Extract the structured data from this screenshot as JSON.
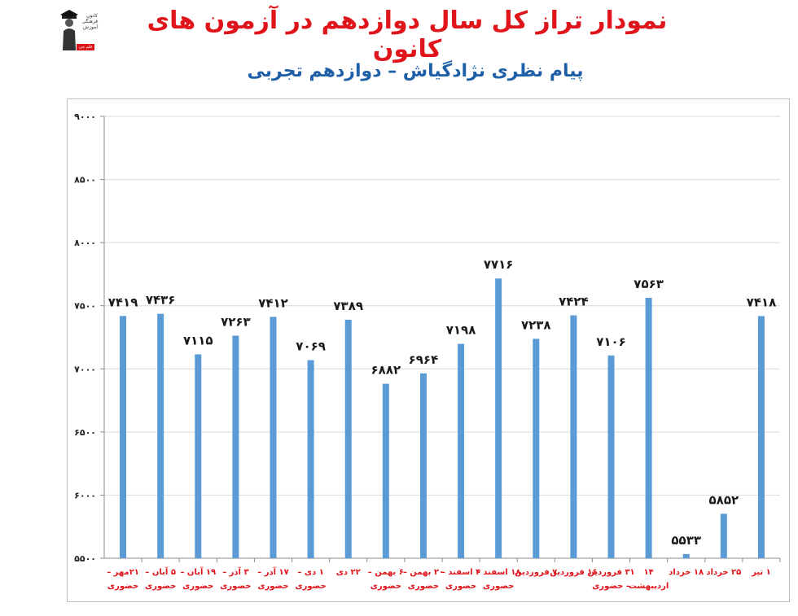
{
  "header": {
    "title": "نمودار تراز کل سال دوازدهم در آزمون های کانون",
    "subtitle": "پیام نظری نژادگیاش – دوازدهم تجربی"
  },
  "logo": {
    "text": "کانون فرهنگی آموزش",
    "badge": "قلم چی"
  },
  "chart_data": {
    "type": "bar",
    "title": "نمودار تراز کل سال دوازدهم در آزمون های کانون",
    "subtitle": "پیام نظری نژادگیاش – دوازدهم تجربی",
    "ylim": [
      5500,
      9000
    ],
    "yticks": [
      5500,
      6000,
      6500,
      7000,
      7500,
      8000,
      8500,
      9000
    ],
    "ytick_labels": [
      "۵۵۰۰",
      "۶۰۰۰",
      "۶۵۰۰",
      "۷۰۰۰",
      "۷۵۰۰",
      "۸۰۰۰",
      "۸۵۰۰",
      "۹۰۰۰"
    ],
    "grid": "horizontal",
    "bar_color": "#5b9bd5",
    "label_color": "#e0151b",
    "categories": [
      [
        "۲۱مهر –",
        "حضوری"
      ],
      [
        "۵ آبان –",
        "حضوری"
      ],
      [
        "۱۹ آبان –",
        "حضوری"
      ],
      [
        "۳ آذر –",
        "حضوری"
      ],
      [
        "۱۷ آذر –",
        "حضوری"
      ],
      [
        "۱ دی –",
        "حضوری"
      ],
      [
        "۲۲ دی"
      ],
      [
        "۶ بهمن –",
        "حضوری"
      ],
      [
        "۲۰ بهمن –",
        "حضوری"
      ],
      [
        "۴ اسفند –",
        "حضوری"
      ],
      [
        "۱۸ اسفند –",
        "حضوری"
      ],
      [
        "۷ فروردین"
      ],
      [
        "۱۶ فروردین"
      ],
      [
        "۳۱ فروردین",
        "– حضوری"
      ],
      [
        "۱۴",
        "اردیبهشت"
      ],
      [
        "۱۸ خرداد"
      ],
      [
        "۲۵ خرداد"
      ],
      [
        "۱ تیر"
      ]
    ],
    "values": [
      7419,
      7436,
      7115,
      7263,
      7412,
      7069,
      7389,
      6882,
      6964,
      7198,
      7716,
      7238,
      7424,
      7106,
      7563,
      5533,
      5852,
      7418
    ],
    "value_labels": [
      "۷۴۱۹",
      "۷۴۳۶",
      "۷۱۱۵",
      "۷۲۶۳",
      "۷۴۱۲",
      "۷۰۶۹",
      "۷۳۸۹",
      "۶۸۸۲",
      "۶۹۶۴",
      "۷۱۹۸",
      "۷۷۱۶",
      "۷۲۳۸",
      "۷۴۲۴",
      "۷۱۰۶",
      "۷۵۶۳",
      "۵۵۳۳",
      "۵۸۵۲",
      "۷۴۱۸"
    ]
  }
}
